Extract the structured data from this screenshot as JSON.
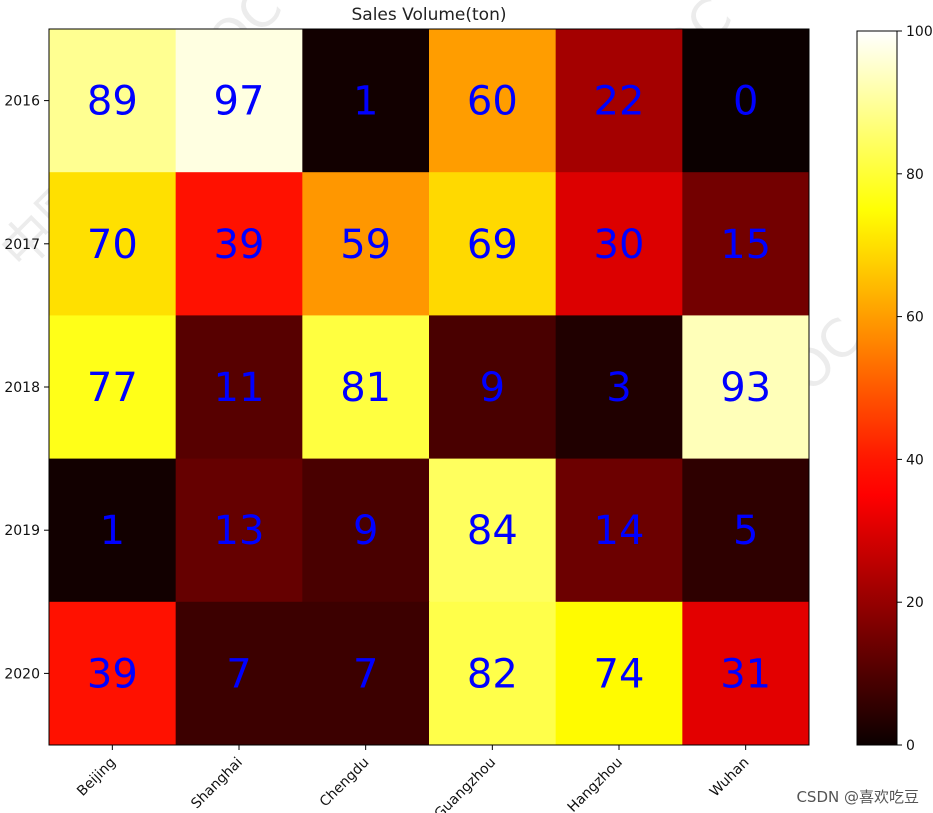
{
  "chart_data": {
    "type": "heatmap",
    "title": "Sales Volume(ton)",
    "x_categories": [
      "Beijing",
      "Shanghai",
      "Chengdu",
      "Guangzhou",
      "Hangzhou",
      "Wuhan"
    ],
    "y_categories": [
      "2016",
      "2017",
      "2018",
      "2019",
      "2020"
    ],
    "values": [
      [
        89,
        97,
        1,
        60,
        22,
        0
      ],
      [
        70,
        39,
        59,
        69,
        30,
        15
      ],
      [
        77,
        11,
        81,
        9,
        3,
        93
      ],
      [
        1,
        13,
        9,
        84,
        14,
        5
      ],
      [
        39,
        7,
        7,
        82,
        74,
        31
      ]
    ],
    "colormap": "hot",
    "colorbar": {
      "ticks": [
        0,
        20,
        40,
        60,
        80,
        100
      ],
      "range": [
        0,
        100
      ]
    },
    "annotation_color": "#0000ff"
  },
  "watermark": "中国大学MOOC",
  "credit": "CSDN @喜欢吃豆"
}
